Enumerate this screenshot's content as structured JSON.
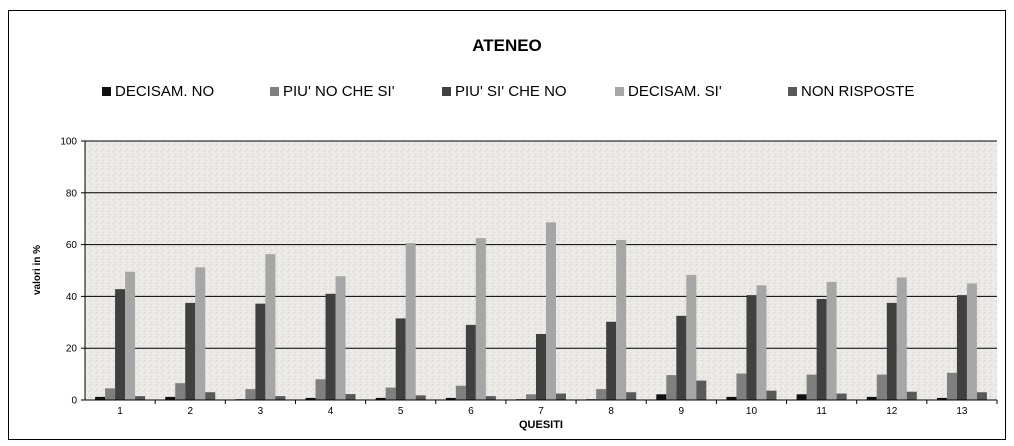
{
  "chart_data": {
    "type": "bar",
    "title": "ATENEO",
    "xlabel": "QUESITI",
    "ylabel": "valori in %",
    "ylim": [
      0,
      100
    ],
    "yticks": [
      0,
      20,
      40,
      60,
      80,
      100
    ],
    "grid": true,
    "legend_position": "top",
    "categories": [
      "1",
      "2",
      "3",
      "4",
      "5",
      "6",
      "7",
      "8",
      "9",
      "10",
      "11",
      "12",
      "13"
    ],
    "series": [
      {
        "name": "DECISAM. NO",
        "color": "#111111",
        "values": [
          1.2,
          1.2,
          0.3,
          0.8,
          0.8,
          0.8,
          0.3,
          0.3,
          2.2,
          1.2,
          2.2,
          1.2,
          0.8
        ]
      },
      {
        "name": "PIU' NO CHE SI'",
        "color": "#7f7f7f",
        "values": [
          4.5,
          6.5,
          4.2,
          8.0,
          4.8,
          5.5,
          2.2,
          4.2,
          9.6,
          10.2,
          9.8,
          9.8,
          10.5
        ]
      },
      {
        "name": "PIU' SI' CHE NO",
        "color": "#404040",
        "values": [
          42.8,
          37.5,
          37.2,
          41.0,
          31.5,
          29.0,
          25.5,
          30.2,
          32.5,
          40.5,
          39.0,
          37.5,
          40.5
        ]
      },
      {
        "name": "DECISAM. SI'",
        "color": "#a6a6a6",
        "values": [
          49.5,
          51.2,
          56.3,
          47.8,
          60.6,
          62.5,
          68.6,
          61.8,
          48.3,
          44.3,
          45.6,
          47.3,
          45.0
        ]
      },
      {
        "name": "NON RISPOSTE",
        "color": "#595959",
        "values": [
          1.5,
          3.0,
          1.5,
          2.3,
          1.8,
          1.5,
          2.5,
          3.0,
          7.5,
          3.6,
          2.5,
          3.2,
          3.0
        ]
      }
    ]
  }
}
